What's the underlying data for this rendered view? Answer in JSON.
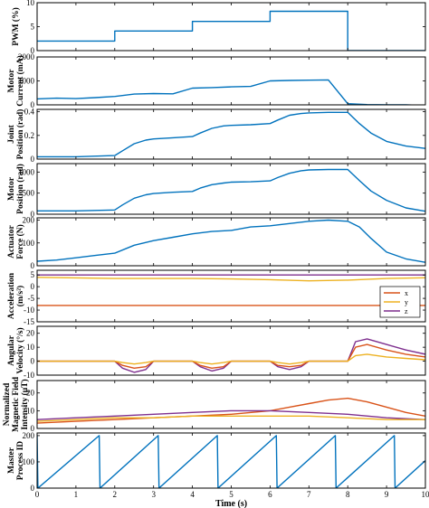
{
  "colors": {
    "blue": "#0072BD",
    "orange": "#D95319",
    "yellow": "#EDB120",
    "purple": "#7E2F8E"
  },
  "chart_data": {
    "type": "line",
    "xlabel": "Time (s)",
    "x_ticks": [
      "0",
      "1",
      "2",
      "3",
      "4",
      "5",
      "6",
      "7",
      "8",
      "9",
      "10"
    ],
    "xlim": [
      0,
      10
    ],
    "grid": false,
    "panels": [
      {
        "id": "pwm",
        "ylabel_lines": [
          "PWM (%)"
        ],
        "ylim": [
          0,
          10
        ],
        "y_ticks": [
          "0",
          "5",
          "10"
        ],
        "series": [
          {
            "color": "blue",
            "x": [
              0,
              2,
              2,
              4,
              4,
              6,
              6,
              8,
              8,
              10
            ],
            "y": [
              2,
              2,
              4.1,
              4.1,
              6.1,
              6.1,
              8.2,
              8.2,
              0,
              0
            ]
          }
        ]
      },
      {
        "id": "motor-current",
        "ylabel_lines": [
          "Motor",
          "Current (mA)"
        ],
        "ylim": [
          0,
          2000
        ],
        "y_ticks": [
          "0",
          "1000",
          "2000"
        ],
        "series": [
          {
            "color": "blue",
            "x": [
              0,
              0.5,
              1,
              1.5,
              2,
              2.5,
              3,
              3.5,
              4,
              4.5,
              5,
              5.5,
              6,
              6.5,
              7,
              7.5,
              8,
              8.5,
              9,
              9.5,
              10
            ],
            "y": [
              250,
              280,
              260,
              300,
              350,
              450,
              470,
              460,
              700,
              720,
              750,
              770,
              1000,
              1020,
              1030,
              1040,
              50,
              10,
              0,
              0,
              -30
            ]
          }
        ]
      },
      {
        "id": "joint-position",
        "ylabel_lines": [
          "Joint",
          "Position (rad)"
        ],
        "ylim": [
          0,
          0.42
        ],
        "y_ticks": [
          "0",
          "0.2",
          "0.4"
        ],
        "series": [
          {
            "color": "blue",
            "x": [
              0,
              1,
              2,
              2.2,
              2.5,
              2.8,
              3,
              3.5,
              4,
              4.2,
              4.5,
              4.8,
              5,
              5.5,
              6,
              6.2,
              6.5,
              6.8,
              7,
              7.5,
              8,
              8.3,
              8.6,
              9,
              9.5,
              10
            ],
            "y": [
              0.02,
              0.02,
              0.03,
              0.07,
              0.13,
              0.16,
              0.17,
              0.18,
              0.19,
              0.22,
              0.26,
              0.28,
              0.285,
              0.29,
              0.3,
              0.33,
              0.37,
              0.385,
              0.39,
              0.395,
              0.395,
              0.3,
              0.22,
              0.15,
              0.11,
              0.09
            ]
          }
        ]
      },
      {
        "id": "motor-position",
        "ylabel_lines": [
          "Motor",
          "Position (rad)"
        ],
        "ylim": [
          0,
          1200
        ],
        "y_ticks": [
          "0",
          "500",
          "1000"
        ],
        "series": [
          {
            "color": "blue",
            "x": [
              0,
              1,
              2,
              2.2,
              2.5,
              2.8,
              3,
              3.5,
              4,
              4.2,
              4.5,
              4.8,
              5,
              5.5,
              6,
              6.2,
              6.5,
              6.8,
              7,
              7.5,
              8,
              8.3,
              8.6,
              9,
              9.5,
              10
            ],
            "y": [
              80,
              80,
              100,
              220,
              380,
              460,
              490,
              520,
              540,
              620,
              700,
              740,
              760,
              770,
              790,
              870,
              970,
              1030,
              1050,
              1060,
              1060,
              800,
              550,
              330,
              150,
              70
            ]
          }
        ]
      },
      {
        "id": "actuator-force",
        "ylabel_lines": [
          "Actuator",
          "Force (N)"
        ],
        "ylim": [
          0,
          210
        ],
        "y_ticks": [
          "0",
          "100",
          "200"
        ],
        "series": [
          {
            "color": "blue",
            "x": [
              0,
              0.5,
              1,
              1.5,
              2,
              2.5,
              3,
              3.5,
              4,
              4.5,
              5,
              5.5,
              6,
              6.5,
              7,
              7.5,
              8,
              8.3,
              8.6,
              9,
              9.5,
              10
            ],
            "y": [
              20,
              25,
              35,
              45,
              55,
              90,
              110,
              125,
              140,
              150,
              155,
              170,
              175,
              185,
              195,
              200,
              195,
              170,
              120,
              60,
              30,
              15
            ]
          }
        ]
      },
      {
        "id": "acceleration",
        "ylabel_lines": [
          "Acceleration",
          "(m/s²)"
        ],
        "ylim": [
          -15,
          7
        ],
        "y_ticks": [
          "-15",
          "-10",
          "-5",
          "0",
          "5"
        ],
        "legend": {
          "position": "right",
          "entries": [
            {
              "label": "x",
              "color": "orange"
            },
            {
              "label": "y",
              "color": "yellow"
            },
            {
              "label": "z",
              "color": "purple"
            }
          ]
        },
        "series": [
          {
            "color": "purple",
            "x": [
              0,
              2,
              4,
              6,
              8,
              10
            ],
            "y": [
              5,
              5,
              5,
              5,
              5,
              5
            ]
          },
          {
            "color": "yellow",
            "x": [
              0,
              2,
              4,
              5,
              6,
              7,
              8,
              9,
              10
            ],
            "y": [
              4,
              3.5,
              3.5,
              3.3,
              3,
              2.5,
              2.8,
              3.5,
              3.8
            ]
          },
          {
            "color": "orange",
            "x": [
              0,
              2,
              4,
              6,
              8,
              10
            ],
            "y": [
              -8,
              -8,
              -8,
              -8,
              -8,
              -8
            ]
          }
        ]
      },
      {
        "id": "angular-velocity",
        "ylabel_lines": [
          "Angular",
          "Velocity (°/s)"
        ],
        "ylim": [
          -10,
          25
        ],
        "y_ticks": [
          "-10",
          "0",
          "10",
          "20"
        ],
        "series": [
          {
            "color": "purple",
            "x": [
              0,
              1,
              2,
              2.2,
              2.5,
              2.8,
              3,
              4,
              4.2,
              4.5,
              4.8,
              5,
              6,
              6.2,
              6.5,
              6.8,
              7,
              8,
              8.2,
              8.5,
              9,
              9.5,
              10
            ],
            "y": [
              0,
              0,
              0,
              -5,
              -8,
              -6,
              0,
              0,
              -4,
              -7,
              -5,
              0,
              0,
              -4,
              -6,
              -4,
              0,
              0,
              14,
              16,
              12,
              8,
              5
            ]
          },
          {
            "color": "orange",
            "x": [
              0,
              2,
              2.2,
              2.5,
              2.8,
              3,
              4,
              4.2,
              4.5,
              4.8,
              5,
              6,
              6.2,
              6.5,
              6.8,
              7,
              8,
              8.2,
              8.5,
              9,
              9.5,
              10
            ],
            "y": [
              0,
              0,
              -3,
              -5,
              -4,
              0,
              0,
              -3,
              -5,
              -4,
              0,
              0,
              -3,
              -4,
              -3,
              0,
              0,
              10,
              12,
              8,
              5,
              3
            ]
          },
          {
            "color": "yellow",
            "x": [
              0,
              2,
              2.2,
              2.5,
              2.8,
              3,
              4,
              4.2,
              4.5,
              4.8,
              5,
              6,
              6.2,
              6.5,
              6.8,
              7,
              8,
              8.2,
              8.5,
              9,
              9.5,
              10
            ],
            "y": [
              0,
              0,
              -1,
              -2,
              -1,
              0,
              0,
              -1,
              -2,
              -1,
              0,
              0,
              -1,
              -2,
              -1,
              0,
              0,
              4,
              5,
              3,
              2,
              1
            ]
          }
        ]
      },
      {
        "id": "magnetic-field",
        "ylabel_lines": [
          "Normalized",
          "Magnetic Field",
          "Intensity (μT)"
        ],
        "ylim": [
          0,
          27
        ],
        "y_ticks": [
          "0",
          "10",
          "20"
        ],
        "series": [
          {
            "color": "orange",
            "x": [
              0,
              1,
              2,
              3,
              4,
              5,
              6,
              6.5,
              7,
              7.5,
              8,
              8.5,
              9,
              9.5,
              10
            ],
            "y": [
              3,
              4,
              5,
              6,
              7,
              8,
              10,
              12,
              14,
              16,
              17,
              15,
              12,
              9,
              7
            ]
          },
          {
            "color": "purple",
            "x": [
              0,
              1,
              2,
              3,
              4,
              5,
              6,
              7,
              8,
              9,
              10
            ],
            "y": [
              5,
              6,
              7,
              8,
              9,
              10,
              10,
              9,
              8,
              6,
              5
            ]
          },
          {
            "color": "yellow",
            "x": [
              0,
              1,
              2,
              3,
              4,
              5,
              6,
              7,
              8,
              9,
              10
            ],
            "y": [
              4,
              5,
              6,
              6,
              7,
              7,
              7,
              7,
              6,
              5,
              5
            ]
          }
        ]
      },
      {
        "id": "master-process-id",
        "ylabel_lines": [
          "Master",
          "Process ID"
        ],
        "ylim": [
          0,
          210
        ],
        "y_ticks": [
          "0",
          "100",
          "200"
        ],
        "series": [
          {
            "color": "blue",
            "x": [
              0,
              0.02,
              1.6,
              1.62,
              3.12,
              3.14,
              4.64,
              4.66,
              6.16,
              6.18,
              7.68,
              7.7,
              9.2,
              9.22,
              10
            ],
            "y": [
              200,
              0,
              200,
              0,
              200,
              0,
              200,
              0,
              200,
              0,
              200,
              0,
              200,
              0,
              105
            ]
          }
        ]
      }
    ]
  }
}
